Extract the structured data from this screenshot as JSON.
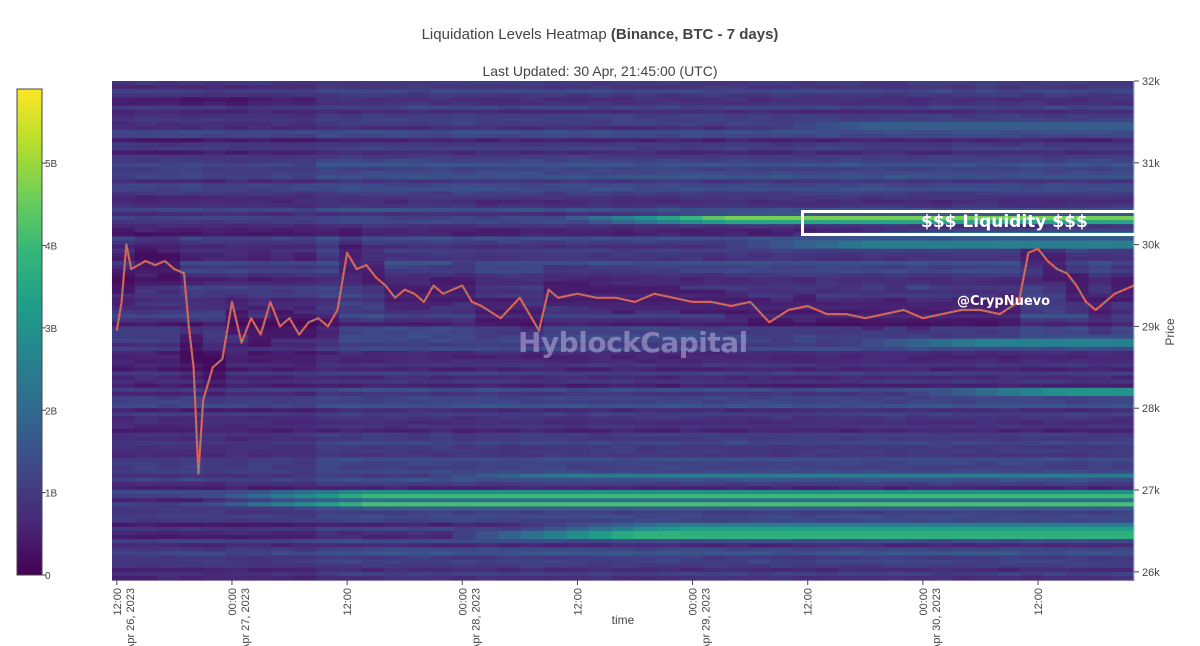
{
  "header": {
    "title_prefix": "Liquidation Levels Heatmap ",
    "title_bold": "(Binance, BTC - 7 days)",
    "subtitle": "Last Updated: 30 Apr, 21:45:00 (UTC)"
  },
  "annotations": {
    "liquidity_label": "$$$ Liquidity $$$",
    "handle": "@CrypNuevo",
    "watermark": "HyblockCapital"
  },
  "chart_data": {
    "type": "heatmap",
    "title": "Liquidation Levels Heatmap (Binance, BTC - 7 days)",
    "subtitle": "Last Updated: 30 Apr, 21:45:00 (UTC)",
    "xlabel": "time",
    "ylabel": "Price",
    "ylim": [
      25900,
      32000
    ],
    "xlim_hours": [
      -0.5,
      106
    ],
    "x_tick_labels": [
      "12:00\nApr 26, 2023",
      "00:00\nApr 27, 2023",
      "12:00",
      "00:00\nApr 28, 2023",
      "12:00",
      "00:00\nApr 29, 2023",
      "12:00",
      "00:00\nApr 30, 2023",
      "12:00"
    ],
    "x_tick_hours": [
      0,
      12,
      24,
      36,
      48,
      60,
      72,
      84,
      96
    ],
    "y_ticks": [
      26000,
      27000,
      28000,
      29000,
      30000,
      31000,
      32000
    ],
    "y_tick_labels": [
      "26k",
      "27k",
      "28k",
      "29k",
      "30k",
      "31k",
      "32k"
    ],
    "colorbar": {
      "ticks": [
        0,
        1,
        2,
        3,
        4,
        5
      ],
      "tick_labels": [
        "0",
        "1B",
        "2B",
        "3B",
        "4B",
        "5B"
      ],
      "max": 5.9,
      "colors": [
        "#440154",
        "#482878",
        "#3e4989",
        "#31688e",
        "#26828e",
        "#1f9e89",
        "#35b779",
        "#6ece58",
        "#b5de2b",
        "#fde725"
      ]
    },
    "liquidity_bands": [
      {
        "price": 26450,
        "peak": 5.2,
        "start_hour": 35
      },
      {
        "price": 26540,
        "peak": 4.0,
        "start_hour": 40
      },
      {
        "price": 26830,
        "peak": 4.4,
        "start_hour": 8
      },
      {
        "price": 26940,
        "peak": 4.8,
        "start_hour": 8
      },
      {
        "price": 27170,
        "peak": 2.6,
        "start_hour": 28
      },
      {
        "price": 28200,
        "peak": 4.2,
        "start_hour": 80
      },
      {
        "price": 28800,
        "peak": 3.6,
        "start_hour": 72
      },
      {
        "price": 30000,
        "peak": 3.5,
        "start_hour": 60
      },
      {
        "price": 30120,
        "peak": 3.0,
        "start_hour": 70
      },
      {
        "price": 30310,
        "peak": 5.6,
        "start_hour": 45
      },
      {
        "price": 31450,
        "peak": 2.4,
        "start_hour": 60
      }
    ],
    "price_series": {
      "name": "BTC",
      "x_hours": [
        0,
        0.5,
        1,
        1.5,
        3,
        4,
        5,
        6,
        7,
        7.5,
        8,
        8.5,
        9,
        10,
        11,
        12,
        13,
        14,
        15,
        16,
        17,
        18,
        19,
        20,
        21,
        22,
        23,
        24,
        25,
        26,
        27,
        28,
        29,
        30,
        31,
        32,
        33,
        34,
        35,
        36,
        37,
        38,
        40,
        42,
        44,
        45,
        46,
        48,
        50,
        52,
        54,
        56,
        58,
        60,
        62,
        64,
        66,
        68,
        70,
        72,
        74,
        76,
        78,
        80,
        82,
        84,
        86,
        88,
        90,
        92,
        94,
        95,
        96,
        97,
        98,
        99,
        100,
        101,
        102,
        103,
        104,
        105,
        106
      ],
      "y": [
        28950,
        29300,
        30000,
        29700,
        29800,
        29750,
        29800,
        29700,
        29650,
        29000,
        28500,
        27200,
        28100,
        28500,
        28600,
        29300,
        28800,
        29100,
        28900,
        29300,
        29000,
        29100,
        28900,
        29050,
        29100,
        29000,
        29200,
        29900,
        29700,
        29750,
        29600,
        29500,
        29350,
        29450,
        29400,
        29300,
        29500,
        29400,
        29450,
        29500,
        29300,
        29250,
        29100,
        29350,
        28950,
        29450,
        29350,
        29400,
        29350,
        29350,
        29300,
        29400,
        29350,
        29300,
        29300,
        29250,
        29300,
        29050,
        29200,
        29250,
        29150,
        29150,
        29100,
        29150,
        29200,
        29100,
        29150,
        29200,
        29200,
        29150,
        29300,
        29900,
        29950,
        29800,
        29700,
        29650,
        29500,
        29300,
        29200,
        29300,
        29400,
        29450,
        29500
      ]
    }
  }
}
